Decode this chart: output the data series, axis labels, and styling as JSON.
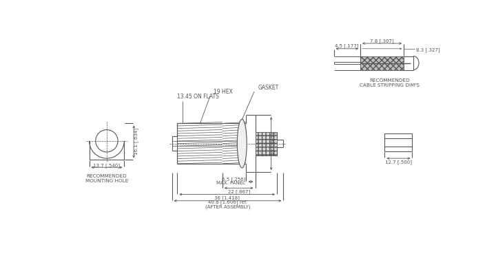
{
  "bg_color": "#ffffff",
  "lc": "#555555",
  "lw": 0.8,
  "annotations": {
    "hex_label": "19 HEX",
    "gasket_label": "GASKET",
    "flats_label": "13.45 ON FLATS",
    "mounting_hole_label": "RECOMMENDED\nMOUNTING HOLE",
    "cable_strip_label": "RECOMMENDED\nCABLE STRIPPING DIM'S",
    "max_panel_label": "6.5 [.256]\nMAX. PANEL"
  },
  "dims": {
    "d1": "13.7 [.540]",
    "d2": "16.1 [.634]",
    "d3": "22 [.867]",
    "d5": "22 [.867]",
    "d6": "36 [1.418]",
    "d7": "40.8 [1.606] ref.\n(AFTER ASSEMBLY)",
    "d8": "12.7 [.500]",
    "d9": "4.5 [.177]",
    "d10": "7.8 [.307]",
    "d11": "8.3 [.327]"
  }
}
